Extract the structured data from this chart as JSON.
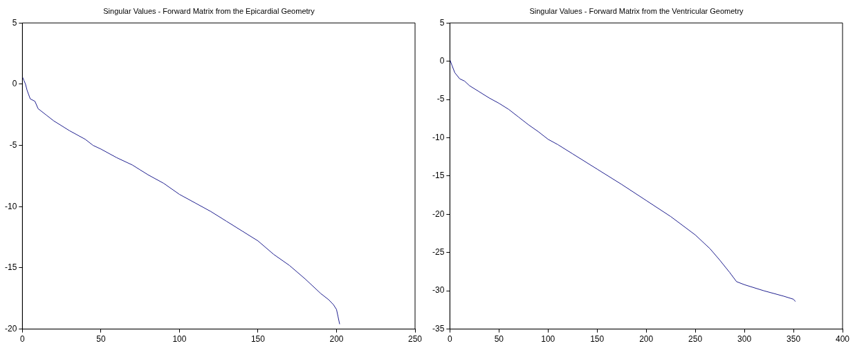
{
  "chart_data": [
    {
      "type": "line",
      "title": "Singular Values - Forward Matrix from the Epicardial Geometry",
      "xlim": [
        0,
        250
      ],
      "xticks": [
        0,
        50,
        100,
        150,
        200,
        250
      ],
      "ylim": [
        -20,
        5
      ],
      "yticks": [
        -20,
        -15,
        -10,
        -5,
        0,
        5
      ],
      "grid": false,
      "legend": false,
      "marker": "none",
      "line_style": "solid",
      "series": [
        {
          "color": "#1f1f8f",
          "x": [
            0,
            1,
            2,
            3,
            5,
            8,
            10,
            15,
            20,
            30,
            40,
            45,
            50,
            60,
            70,
            75,
            80,
            90,
            100,
            110,
            120,
            130,
            140,
            150,
            160,
            170,
            180,
            190,
            195,
            198,
            200,
            201,
            202
          ],
          "values": [
            0.6,
            0.3,
            0,
            -0.5,
            -1.2,
            -1.4,
            -2,
            -2.5,
            -3,
            -3.8,
            -4.5,
            -5,
            -5.3,
            -6,
            -6.6,
            -7,
            -7.4,
            -8.1,
            -9,
            -9.7,
            -10.4,
            -11.2,
            -12,
            -12.8,
            -13.9,
            -14.8,
            -15.9,
            -17.1,
            -17.6,
            -18,
            -18.4,
            -19,
            -19.6
          ]
        }
      ]
    },
    {
      "type": "line",
      "title": "Singular Values - Forward Matrix from the Ventricular Geometry",
      "xlim": [
        0,
        400
      ],
      "xticks": [
        0,
        50,
        100,
        150,
        200,
        250,
        300,
        350,
        400
      ],
      "ylim": [
        -35,
        5
      ],
      "yticks": [
        -35,
        -30,
        -25,
        -20,
        -15,
        -10,
        -5,
        0,
        5
      ],
      "grid": false,
      "legend": false,
      "marker": "none",
      "line_style": "solid",
      "series": [
        {
          "color": "#1f1f8f",
          "x": [
            0,
            2,
            5,
            10,
            15,
            20,
            30,
            40,
            50,
            60,
            70,
            80,
            90,
            100,
            110,
            125,
            150,
            175,
            200,
            225,
            250,
            265,
            275,
            285,
            292,
            300,
            320,
            340,
            350,
            352
          ],
          "values": [
            0.2,
            -0.5,
            -1.5,
            -2.3,
            -2.6,
            -3.2,
            -4,
            -4.8,
            -5.5,
            -6.3,
            -7.3,
            -8.3,
            -9.2,
            -10.2,
            -10.9,
            -12.1,
            -14.1,
            -16.1,
            -18.2,
            -20.3,
            -22.7,
            -24.5,
            -26,
            -27.6,
            -28.8,
            -29.2,
            -30,
            -30.7,
            -31.1,
            -31.4
          ]
        }
      ]
    }
  ]
}
